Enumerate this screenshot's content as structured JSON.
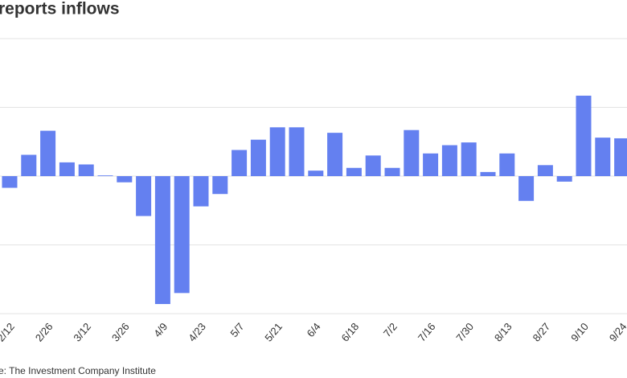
{
  "chart_data": {
    "type": "bar",
    "title": "reports inflows",
    "categories": [
      "2/12",
      null,
      "2/26",
      null,
      "3/12",
      null,
      "3/26",
      null,
      "4/9",
      null,
      "4/23",
      null,
      "5/7",
      null,
      "5/21",
      null,
      "6/4",
      null,
      "6/18",
      null,
      "7/2",
      null,
      "7/16",
      null,
      "7/30",
      null,
      "8/13",
      null,
      "8/27",
      null,
      "9/10",
      null,
      "9/24"
    ],
    "values": [
      -0.17,
      0.31,
      0.66,
      0.2,
      0.17,
      0.01,
      -0.09,
      -0.58,
      -1.86,
      -1.7,
      -0.44,
      -0.26,
      0.38,
      0.53,
      0.71,
      0.71,
      0.08,
      0.63,
      0.12,
      0.3,
      0.12,
      0.67,
      0.33,
      0.45,
      0.49,
      0.06,
      0.33,
      -0.36,
      0.16,
      -0.08,
      1.17,
      0.56,
      0.55
    ],
    "color": "#6480f0",
    "ylim": [
      -2,
      2
    ],
    "yticks": [
      -2,
      -1,
      0,
      1,
      2
    ],
    "grid": true,
    "source": "e: The Investment Company Institute"
  }
}
